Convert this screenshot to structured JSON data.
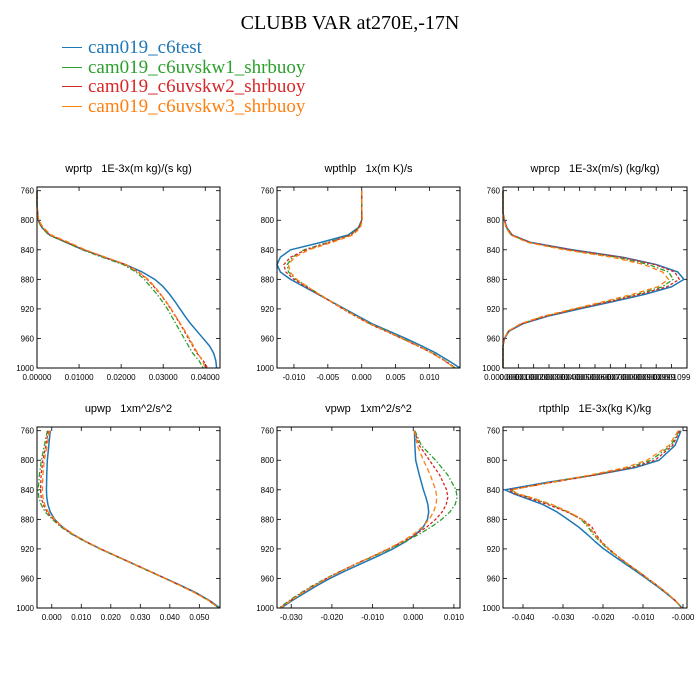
{
  "title": "CLUBB VAR at270E,-17N",
  "legend": [
    {
      "label": "cam019_c6test",
      "color": "#1f77b4"
    },
    {
      "label": "cam019_c6uvskw1_shrbuoy",
      "color": "#2ca02c"
    },
    {
      "label": "cam019_c6uvskw2_shrbuoy",
      "color": "#d62728"
    },
    {
      "label": "cam019_c6uvskw3_shrbuoy",
      "color": "#ff7f0e"
    }
  ],
  "chart_data": [
    {
      "type": "line",
      "title": "wprtp   1E-3x(m kg)/(s kg)",
      "y_ticks": [
        "760",
        "800",
        "840",
        "880",
        "920",
        "960",
        "1000"
      ],
      "x_ticks": [
        "0.00000",
        "0.01000",
        "0.02000",
        "0.03000",
        "0.04000"
      ],
      "x_tick_values": [
        0,
        0.01,
        0.02,
        0.03,
        0.04
      ],
      "xlim": [
        0,
        0.0435
      ],
      "ylim": [
        1000,
        755
      ],
      "y": [
        760,
        780,
        800,
        810,
        820,
        830,
        840,
        850,
        860,
        870,
        880,
        890,
        900,
        910,
        920,
        930,
        940,
        950,
        960,
        970,
        980,
        990,
        1000
      ],
      "series": [
        {
          "values": [
            0,
            0,
            0.0003,
            0.0012,
            0.003,
            0.007,
            0.011,
            0.016,
            0.021,
            0.025,
            0.028,
            0.03,
            0.0315,
            0.0328,
            0.034,
            0.0352,
            0.0365,
            0.038,
            0.0395,
            0.041,
            0.042,
            0.0425,
            0.0427
          ]
        },
        {
          "values": [
            0,
            0,
            0.0002,
            0.0011,
            0.0028,
            0.0068,
            0.0108,
            0.0155,
            0.0205,
            0.0235,
            0.0255,
            0.027,
            0.0285,
            0.0298,
            0.031,
            0.032,
            0.033,
            0.034,
            0.035,
            0.036,
            0.037,
            0.0385,
            0.0395
          ]
        },
        {
          "values": [
            0,
            0,
            0.0003,
            0.0013,
            0.0031,
            0.0072,
            0.0112,
            0.016,
            0.021,
            0.024,
            0.0262,
            0.0278,
            0.0293,
            0.0306,
            0.0318,
            0.0329,
            0.034,
            0.035,
            0.036,
            0.037,
            0.038,
            0.0395,
            0.0405
          ]
        },
        {
          "values": [
            0,
            0,
            0.0004,
            0.0015,
            0.0034,
            0.0076,
            0.0115,
            0.0163,
            0.0212,
            0.0242,
            0.0264,
            0.028,
            0.0294,
            0.0307,
            0.0319,
            0.033,
            0.0341,
            0.0352,
            0.0362,
            0.0372,
            0.0382,
            0.0393,
            0.04
          ]
        }
      ]
    },
    {
      "type": "line",
      "title": "wpthlp   1x(m K)/s",
      "y_ticks": [
        "760",
        "800",
        "840",
        "880",
        "920",
        "960",
        "1000"
      ],
      "x_ticks": [
        "-0.010",
        "-0.005",
        "0.000",
        "0.005",
        "0.010"
      ],
      "x_tick_values": [
        -0.01,
        -0.005,
        0,
        0.005,
        0.01
      ],
      "xlim": [
        -0.0125,
        0.0145
      ],
      "ylim": [
        1000,
        755
      ],
      "y": [
        760,
        780,
        800,
        810,
        820,
        830,
        840,
        850,
        860,
        870,
        880,
        890,
        900,
        910,
        920,
        930,
        940,
        950,
        960,
        970,
        980,
        990,
        1000
      ],
      "series": [
        {
          "values": [
            0,
            0,
            0,
            -0.0005,
            -0.002,
            -0.006,
            -0.0105,
            -0.012,
            -0.0125,
            -0.012,
            -0.0105,
            -0.0085,
            -0.0065,
            -0.0045,
            -0.0025,
            -0.0005,
            0.0015,
            0.004,
            0.0065,
            0.0088,
            0.011,
            0.0128,
            0.0145
          ]
        },
        {
          "values": [
            0,
            0,
            0,
            -0.0004,
            -0.0017,
            -0.005,
            -0.0085,
            -0.0102,
            -0.011,
            -0.0108,
            -0.0097,
            -0.008,
            -0.0063,
            -0.0045,
            -0.0027,
            -0.0008,
            0.0012,
            0.0036,
            0.006,
            0.0083,
            0.0105,
            0.0123,
            0.0138
          ]
        },
        {
          "values": [
            0,
            0,
            0,
            -0.0004,
            -0.0016,
            -0.0048,
            -0.0082,
            -0.0105,
            -0.0115,
            -0.0112,
            -0.01,
            -0.0082,
            -0.0064,
            -0.0046,
            -0.0028,
            -0.0009,
            0.0011,
            0.0035,
            0.0059,
            0.0082,
            0.0104,
            0.0122,
            0.0138
          ]
        },
        {
          "values": [
            0,
            0,
            0.0001,
            -0.0002,
            -0.0013,
            -0.0044,
            -0.0078,
            -0.0099,
            -0.0108,
            -0.0106,
            -0.0096,
            -0.008,
            -0.0063,
            -0.0045,
            -0.0027,
            -0.0008,
            0.0012,
            0.0036,
            0.006,
            0.0083,
            0.0104,
            0.0122,
            0.0137
          ]
        }
      ]
    },
    {
      "type": "line",
      "title": "wprcp   1E-3x(m/s) (kg/kg)",
      "y_ticks": [
        "760",
        "800",
        "840",
        "880",
        "920",
        "960",
        "1000"
      ],
      "x_ticks": [
        "0.0000000",
        "0.0000100",
        "0.0000200",
        "0.0000300",
        "0.0000400",
        "0.0000500",
        "0.0000600",
        "0.0000700",
        "0.0000800",
        "0.0000900",
        "0.0000999",
        "0.0001099"
      ],
      "x_tick_values": [
        0,
        1e-05,
        2e-05,
        3e-05,
        4e-05,
        5e-05,
        6e-05,
        7e-05,
        8e-05,
        9e-05,
        9.99e-05,
        0.0001099
      ],
      "xlim": [
        0,
        0.00012
      ],
      "ylim": [
        1000,
        755
      ],
      "y": [
        760,
        790,
        800,
        810,
        820,
        830,
        840,
        850,
        860,
        870,
        880,
        890,
        900,
        910,
        920,
        930,
        940,
        950,
        960,
        970,
        1000
      ],
      "series": [
        {
          "values": [
            0,
            0,
            1e-06,
            2.5e-06,
            6e-06,
            1.8e-05,
            4.5e-05,
            7.8e-05,
            0.0001,
            0.000114,
            0.000118,
            0.00011,
            9.3e-05,
            7.2e-05,
            5e-05,
            2.9e-05,
            1.3e-05,
            4e-06,
            1e-06,
            0,
            0
          ]
        },
        {
          "values": [
            0,
            0,
            1e-06,
            2e-06,
            5.5e-06,
            1.7e-05,
            4.2e-05,
            7.4e-05,
            9.5e-05,
            0.000108,
            0.000111,
            0.000104,
            8.8e-05,
            6.8e-05,
            4.7e-05,
            2.7e-05,
            1.2e-05,
            3.5e-06,
            8e-07,
            0,
            0
          ]
        },
        {
          "values": [
            0,
            0,
            1e-06,
            2.5e-06,
            6e-06,
            1.75e-05,
            4.4e-05,
            7.7e-05,
            9.9e-05,
            0.000112,
            0.000115,
            0.000107,
            9e-05,
            7e-05,
            4.8e-05,
            2.8e-05,
            1.25e-05,
            3.8e-06,
            9e-07,
            0,
            0
          ]
        },
        {
          "values": [
            0,
            0,
            8e-07,
            2e-06,
            5e-06,
            1.6e-05,
            4e-05,
            7.1e-05,
            9.2e-05,
            0.000104,
            0.000108,
            0.000101,
            8.5e-05,
            6.6e-05,
            4.6e-05,
            2.6e-05,
            1.15e-05,
            3.4e-06,
            8e-07,
            0,
            0
          ]
        }
      ]
    },
    {
      "type": "line",
      "title": "upwp   1xm^2/s^2",
      "y_ticks": [
        "760",
        "800",
        "840",
        "880",
        "920",
        "960",
        "1000"
      ],
      "x_ticks": [
        "0.000",
        "0.010",
        "0.020",
        "0.030",
        "0.040",
        "0.050"
      ],
      "x_tick_values": [
        0,
        0.01,
        0.02,
        0.03,
        0.04,
        0.05
      ],
      "xlim": [
        -0.005,
        0.057
      ],
      "ylim": [
        1000,
        755
      ],
      "y": [
        760,
        780,
        800,
        820,
        840,
        850,
        860,
        870,
        880,
        890,
        900,
        910,
        920,
        930,
        940,
        950,
        960,
        970,
        980,
        990,
        1000
      ],
      "series": [
        {
          "values": [
            -0.0005,
            -0.001,
            -0.0015,
            -0.0017,
            -0.0018,
            -0.0017,
            -0.0013,
            -0.0005,
            0.001,
            0.0035,
            0.007,
            0.0115,
            0.0165,
            0.022,
            0.0275,
            0.033,
            0.0385,
            0.044,
            0.0492,
            0.0535,
            0.057
          ]
        },
        {
          "values": [
            -0.0015,
            -0.0025,
            -0.0035,
            -0.0042,
            -0.0046,
            -0.0044,
            -0.0036,
            -0.0022,
            0.0002,
            0.003,
            0.0067,
            0.0112,
            0.0163,
            0.0218,
            0.0273,
            0.0328,
            0.0383,
            0.0437,
            0.0488,
            0.0532,
            0.0565
          ]
        },
        {
          "values": [
            -0.0012,
            -0.002,
            -0.003,
            -0.0036,
            -0.0038,
            -0.0036,
            -0.0029,
            -0.0016,
            0.0006,
            0.0033,
            0.007,
            0.0115,
            0.0166,
            0.0221,
            0.0276,
            0.0331,
            0.0385,
            0.0438,
            0.0489,
            0.0533,
            0.0566
          ]
        },
        {
          "values": [
            -0.0008,
            -0.0016,
            -0.0025,
            -0.003,
            -0.0032,
            -0.003,
            -0.0024,
            -0.0012,
            0.0009,
            0.0036,
            0.0072,
            0.0116,
            0.0166,
            0.022,
            0.0275,
            0.033,
            0.0384,
            0.0437,
            0.0488,
            0.0532,
            0.0566
          ]
        }
      ]
    },
    {
      "type": "line",
      "title": "vpwp   1xm^2/s^2",
      "y_ticks": [
        "760",
        "800",
        "840",
        "880",
        "920",
        "960",
        "1000"
      ],
      "x_ticks": [
        "-0.030",
        "-0.020",
        "-0.010",
        "0.000",
        "0.010"
      ],
      "x_tick_values": [
        -0.03,
        -0.02,
        -0.01,
        0,
        0.01
      ],
      "xlim": [
        -0.0335,
        0.0115
      ],
      "ylim": [
        1000,
        755
      ],
      "y": [
        760,
        780,
        800,
        820,
        840,
        850,
        860,
        870,
        880,
        890,
        900,
        910,
        920,
        930,
        940,
        950,
        960,
        970,
        980,
        990,
        1000
      ],
      "series": [
        {
          "values": [
            0.0003,
            0.0004,
            0.0006,
            0.0015,
            0.0025,
            0.0031,
            0.0036,
            0.0038,
            0.0035,
            0.0025,
            0.0007,
            -0.0018,
            -0.005,
            -0.0088,
            -0.0128,
            -0.0168,
            -0.0205,
            -0.0238,
            -0.0268,
            -0.0298,
            -0.0325
          ]
        },
        {
          "values": [
            0.0004,
            0.002,
            0.0055,
            0.0085,
            0.0105,
            0.0108,
            0.0103,
            0.009,
            0.007,
            0.0045,
            0.0015,
            -0.002,
            -0.0058,
            -0.0098,
            -0.0138,
            -0.0178,
            -0.0215,
            -0.0248,
            -0.0278,
            -0.0305,
            -0.033
          ]
        },
        {
          "values": [
            0.0003,
            0.0015,
            0.004,
            0.0065,
            0.0082,
            0.0085,
            0.0081,
            0.0071,
            0.0055,
            0.0034,
            0.0007,
            -0.0025,
            -0.0061,
            -0.01,
            -0.014,
            -0.0178,
            -0.0213,
            -0.0245,
            -0.0275,
            -0.0302,
            -0.0328
          ]
        },
        {
          "values": [
            0.0003,
            0.001,
            0.0025,
            0.0042,
            0.0055,
            0.0058,
            0.0056,
            0.005,
            0.0039,
            0.0023,
            0.0001,
            -0.0028,
            -0.0062,
            -0.01,
            -0.0139,
            -0.0177,
            -0.0212,
            -0.0244,
            -0.0274,
            -0.0301,
            -0.0327
          ]
        }
      ]
    },
    {
      "type": "line",
      "title": "rtpthlp   1E-3x(kg K)/kg",
      "y_ticks": [
        "760",
        "800",
        "840",
        "880",
        "920",
        "960",
        "1000"
      ],
      "x_ticks": [
        "-0.040",
        "-0.030",
        "-0.020",
        "-0.010",
        "-0.000"
      ],
      "x_tick_values": [
        -0.04,
        -0.03,
        -0.02,
        -0.01,
        0
      ],
      "xlim": [
        -0.045,
        0.001
      ],
      "ylim": [
        1000,
        755
      ],
      "y": [
        760,
        780,
        800,
        810,
        820,
        830,
        840,
        845,
        850,
        860,
        870,
        880,
        890,
        900,
        910,
        920,
        930,
        940,
        950,
        960,
        970,
        980,
        990,
        1000
      ],
      "series": [
        {
          "values": [
            -0.0005,
            -0.002,
            -0.006,
            -0.012,
            -0.022,
            -0.034,
            -0.0445,
            -0.0425,
            -0.04,
            -0.035,
            -0.0315,
            -0.0288,
            -0.0262,
            -0.024,
            -0.022,
            -0.0198,
            -0.0172,
            -0.0145,
            -0.0118,
            -0.0092,
            -0.0066,
            -0.0042,
            -0.002,
            -0.0002
          ]
        },
        {
          "values": [
            -0.001,
            -0.003,
            -0.008,
            -0.0135,
            -0.0225,
            -0.033,
            -0.043,
            -0.0418,
            -0.0385,
            -0.033,
            -0.0288,
            -0.0255,
            -0.0238,
            -0.0225,
            -0.0208,
            -0.0188,
            -0.0165,
            -0.014,
            -0.0114,
            -0.0089,
            -0.0064,
            -0.004,
            -0.0019,
            -0.0003
          ]
        },
        {
          "values": [
            -0.0008,
            -0.0026,
            -0.007,
            -0.0128,
            -0.022,
            -0.0328,
            -0.0435,
            -0.0422,
            -0.0392,
            -0.0338,
            -0.029,
            -0.0252,
            -0.0228,
            -0.0218,
            -0.0204,
            -0.0185,
            -0.0163,
            -0.0139,
            -0.0113,
            -0.0088,
            -0.0063,
            -0.004,
            -0.0019,
            -0.0003
          ]
        },
        {
          "values": [
            -0.0012,
            -0.0035,
            -0.009,
            -0.0145,
            -0.0232,
            -0.0332,
            -0.0428,
            -0.0415,
            -0.0382,
            -0.0327,
            -0.0285,
            -0.0252,
            -0.0234,
            -0.0222,
            -0.0206,
            -0.0186,
            -0.0164,
            -0.0139,
            -0.0113,
            -0.0088,
            -0.0063,
            -0.004,
            -0.0019,
            -0.0003
          ]
        }
      ]
    }
  ]
}
